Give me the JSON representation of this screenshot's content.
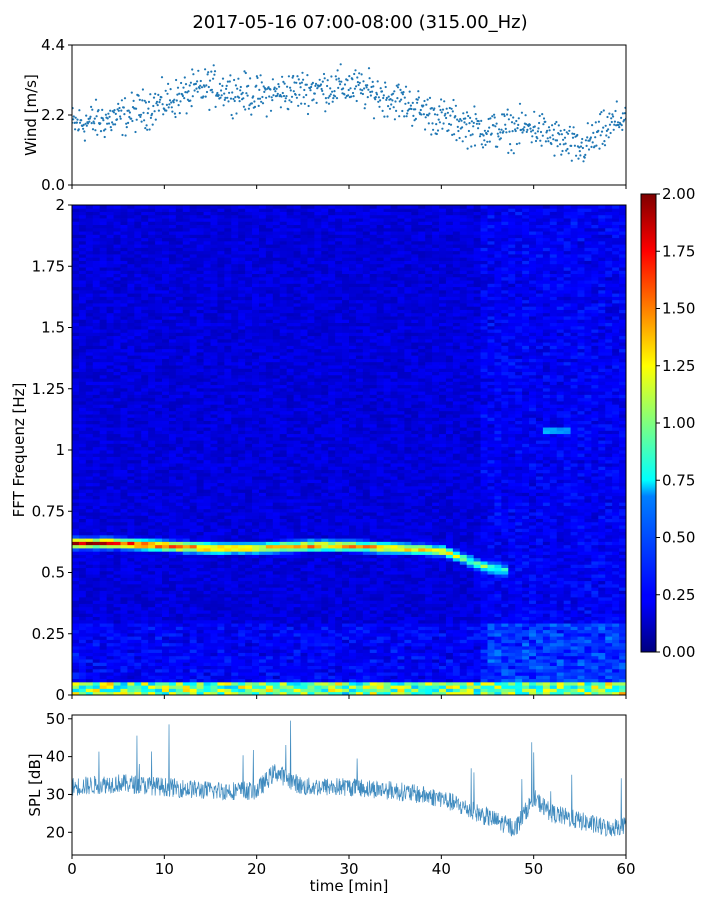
{
  "title": "2017-05-16 07:00-08:00 (315.00_Hz)",
  "chart_data": [
    {
      "type": "scatter",
      "name": "wind",
      "ylabel": "Wind [m/s]",
      "ylim": [
        0,
        4.4
      ],
      "yticks": [
        "0.0",
        "2.2",
        "4.4"
      ],
      "xlim": [
        0,
        60
      ],
      "grid": false,
      "marker_color": "#1f77b4",
      "trend": {
        "x": [
          0,
          5,
          10,
          15,
          20,
          25,
          30,
          35,
          40,
          45,
          50,
          55,
          60
        ],
        "y": [
          1.9,
          2.1,
          2.6,
          3.1,
          2.8,
          3.0,
          3.1,
          2.7,
          2.1,
          1.7,
          1.8,
          1.1,
          2.2
        ]
      },
      "spread": 0.55
    },
    {
      "type": "heatmap",
      "name": "spectrogram",
      "ylabel": "FFT Frequenz [Hz]",
      "ylim": [
        0,
        2
      ],
      "yticks": [
        "0",
        "0.25",
        "0.5",
        "0.75",
        "1",
        "1.25",
        "1.5",
        "1.75",
        "2"
      ],
      "xlim": [
        0,
        60
      ],
      "colormap": "jet",
      "colorbar": {
        "min": 0,
        "max": 2,
        "ticks": [
          "0.00",
          "0.25",
          "0.50",
          "0.75",
          "1.00",
          "1.25",
          "1.50",
          "1.75",
          "2.00"
        ]
      },
      "ridge": {
        "x": [
          0,
          5,
          10,
          15,
          20,
          25,
          30,
          35,
          40,
          43,
          45,
          47
        ],
        "frequency": [
          0.62,
          0.62,
          0.61,
          0.6,
          0.6,
          0.61,
          0.61,
          0.6,
          0.59,
          0.55,
          0.52,
          0.51
        ],
        "intensity": [
          1.8,
          1.7,
          1.6,
          1.5,
          1.3,
          1.4,
          1.4,
          1.3,
          1.2,
          0.9,
          0.8,
          0.6
        ]
      },
      "features": [
        {
          "label": "low-frequency band",
          "frequency": [
            0,
            0.05
          ],
          "intensity": 1.0
        },
        {
          "label": "late broadband",
          "x": [
            46,
            60
          ],
          "intensity": 0.45
        },
        {
          "label": "isolated line",
          "x": [
            51,
            54
          ],
          "frequency": 1.08,
          "intensity": 0.6
        }
      ]
    },
    {
      "type": "line",
      "name": "spl",
      "xlabel": "time [min]",
      "ylabel": "SPL [dB]",
      "ylim": [
        14,
        51
      ],
      "yticks": [
        "20",
        "30",
        "40",
        "50"
      ],
      "xlim": [
        0,
        60
      ],
      "xticks": [
        "0",
        "10",
        "20",
        "30",
        "40",
        "50",
        "60"
      ],
      "line_color": "#1f77b4",
      "trend": {
        "x": [
          0,
          5,
          10,
          15,
          20,
          22,
          25,
          30,
          35,
          40,
          42,
          45,
          47,
          48,
          50,
          52,
          55,
          58,
          60
        ],
        "y": [
          32,
          33,
          32,
          31,
          31,
          36,
          32,
          32,
          31,
          29,
          27,
          24,
          22,
          21,
          29,
          25,
          23,
          21,
          22
        ]
      },
      "spread": 2.5
    }
  ]
}
